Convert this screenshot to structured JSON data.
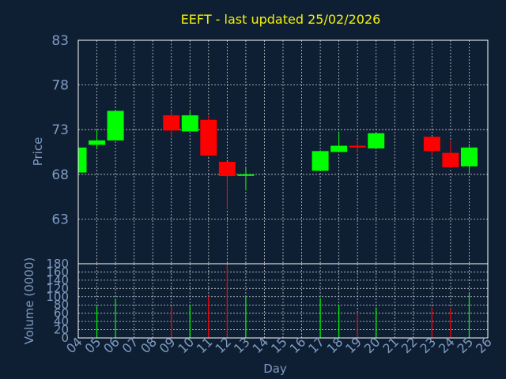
{
  "chart_data": [
    {
      "type": "candlestick",
      "title": "EEFT - last updated 25/02/2026",
      "ylabel": "Price",
      "ylim": [
        58,
        83
      ],
      "yticks": [
        63,
        68,
        73,
        78,
        83
      ],
      "up_color": "#00ff00",
      "down_color": "#ff0000",
      "candles": [
        {
          "day": 4,
          "open": 68.2,
          "high": 71.0,
          "low": 68.2,
          "close": 71.0
        },
        {
          "day": 5,
          "open": 71.3,
          "high": 73.0,
          "low": 70.8,
          "close": 71.8
        },
        {
          "day": 6,
          "open": 71.8,
          "high": 75.1,
          "low": 71.8,
          "close": 75.1
        },
        {
          "day": 9,
          "open": 74.6,
          "high": 75.1,
          "low": 72.1,
          "close": 72.9
        },
        {
          "day": 10,
          "open": 72.8,
          "high": 75.1,
          "low": 72.8,
          "close": 74.6
        },
        {
          "day": 11,
          "open": 74.1,
          "high": 74.6,
          "low": 70.0,
          "close": 70.1
        },
        {
          "day": 12,
          "open": 69.4,
          "high": 69.4,
          "low": 64.1,
          "close": 67.8
        },
        {
          "day": 13,
          "open": 67.9,
          "high": 68.7,
          "low": 66.2,
          "close": 68.0
        },
        {
          "day": 17,
          "open": 68.4,
          "high": 70.7,
          "low": 68.4,
          "close": 70.6
        },
        {
          "day": 18,
          "open": 70.5,
          "high": 72.8,
          "low": 70.5,
          "close": 71.2
        },
        {
          "day": 19,
          "open": 71.2,
          "high": 71.8,
          "low": 70.4,
          "close": 71.0
        },
        {
          "day": 20,
          "open": 70.9,
          "high": 72.6,
          "low": 70.9,
          "close": 72.6
        },
        {
          "day": 23,
          "open": 72.2,
          "high": 72.2,
          "low": 70.1,
          "close": 70.6
        },
        {
          "day": 24,
          "open": 70.4,
          "high": 71.8,
          "low": 68.7,
          "close": 68.8
        },
        {
          "day": 25,
          "open": 68.9,
          "high": 71.4,
          "low": 68.0,
          "close": 71.0
        }
      ]
    },
    {
      "type": "bar",
      "xlabel": "Day",
      "ylabel": "Volume (0000)",
      "ylim": [
        0,
        180
      ],
      "yticks": [
        0,
        20,
        40,
        60,
        80,
        100,
        120,
        140,
        160,
        180
      ],
      "xticks": [
        "04",
        "05",
        "06",
        "07",
        "08",
        "09",
        "10",
        "11",
        "12",
        "13",
        "14",
        "15",
        "16",
        "17",
        "18",
        "19",
        "20",
        "21",
        "22",
        "23",
        "24",
        "25",
        "26"
      ],
      "xlim": [
        4,
        26
      ],
      "values": [
        {
          "day": 5,
          "volume": 76,
          "color": "#00ff00"
        },
        {
          "day": 6,
          "volume": 96,
          "color": "#00ff00"
        },
        {
          "day": 9,
          "volume": 76,
          "color": "#ff0000"
        },
        {
          "day": 10,
          "volume": 78,
          "color": "#00ff00"
        },
        {
          "day": 11,
          "volume": 101,
          "color": "#ff0000"
        },
        {
          "day": 12,
          "volume": 178,
          "color": "#ff0000"
        },
        {
          "day": 13,
          "volume": 100,
          "color": "#00ff00"
        },
        {
          "day": 17,
          "volume": 97,
          "color": "#00ff00"
        },
        {
          "day": 18,
          "volume": 80,
          "color": "#00ff00"
        },
        {
          "day": 19,
          "volume": 62,
          "color": "#ff0000"
        },
        {
          "day": 20,
          "volume": 74,
          "color": "#00ff00"
        },
        {
          "day": 23,
          "volume": 74,
          "color": "#ff0000"
        },
        {
          "day": 24,
          "volume": 72,
          "color": "#ff0000"
        },
        {
          "day": 25,
          "volume": 108,
          "color": "#00ff00"
        }
      ]
    }
  ]
}
